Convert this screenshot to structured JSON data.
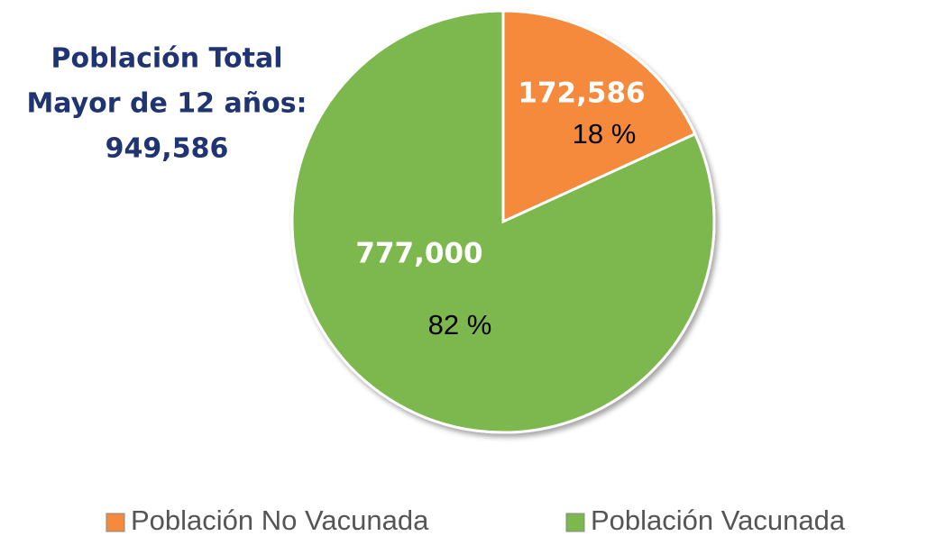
{
  "chart_data": {
    "type": "pie",
    "annotation_lines": [
      "Población Total",
      "Mayor de 12 años:",
      "949,586"
    ],
    "categories": [
      "Población No Vacunada",
      "Población Vacunada"
    ],
    "values": [
      172586,
      777000
    ],
    "value_labels": [
      "172,586",
      "777,000"
    ],
    "percent_labels": [
      "18 %",
      "82 %"
    ],
    "colors": [
      "#f58a3c",
      "#7cb84e"
    ],
    "legend": "bottom"
  }
}
